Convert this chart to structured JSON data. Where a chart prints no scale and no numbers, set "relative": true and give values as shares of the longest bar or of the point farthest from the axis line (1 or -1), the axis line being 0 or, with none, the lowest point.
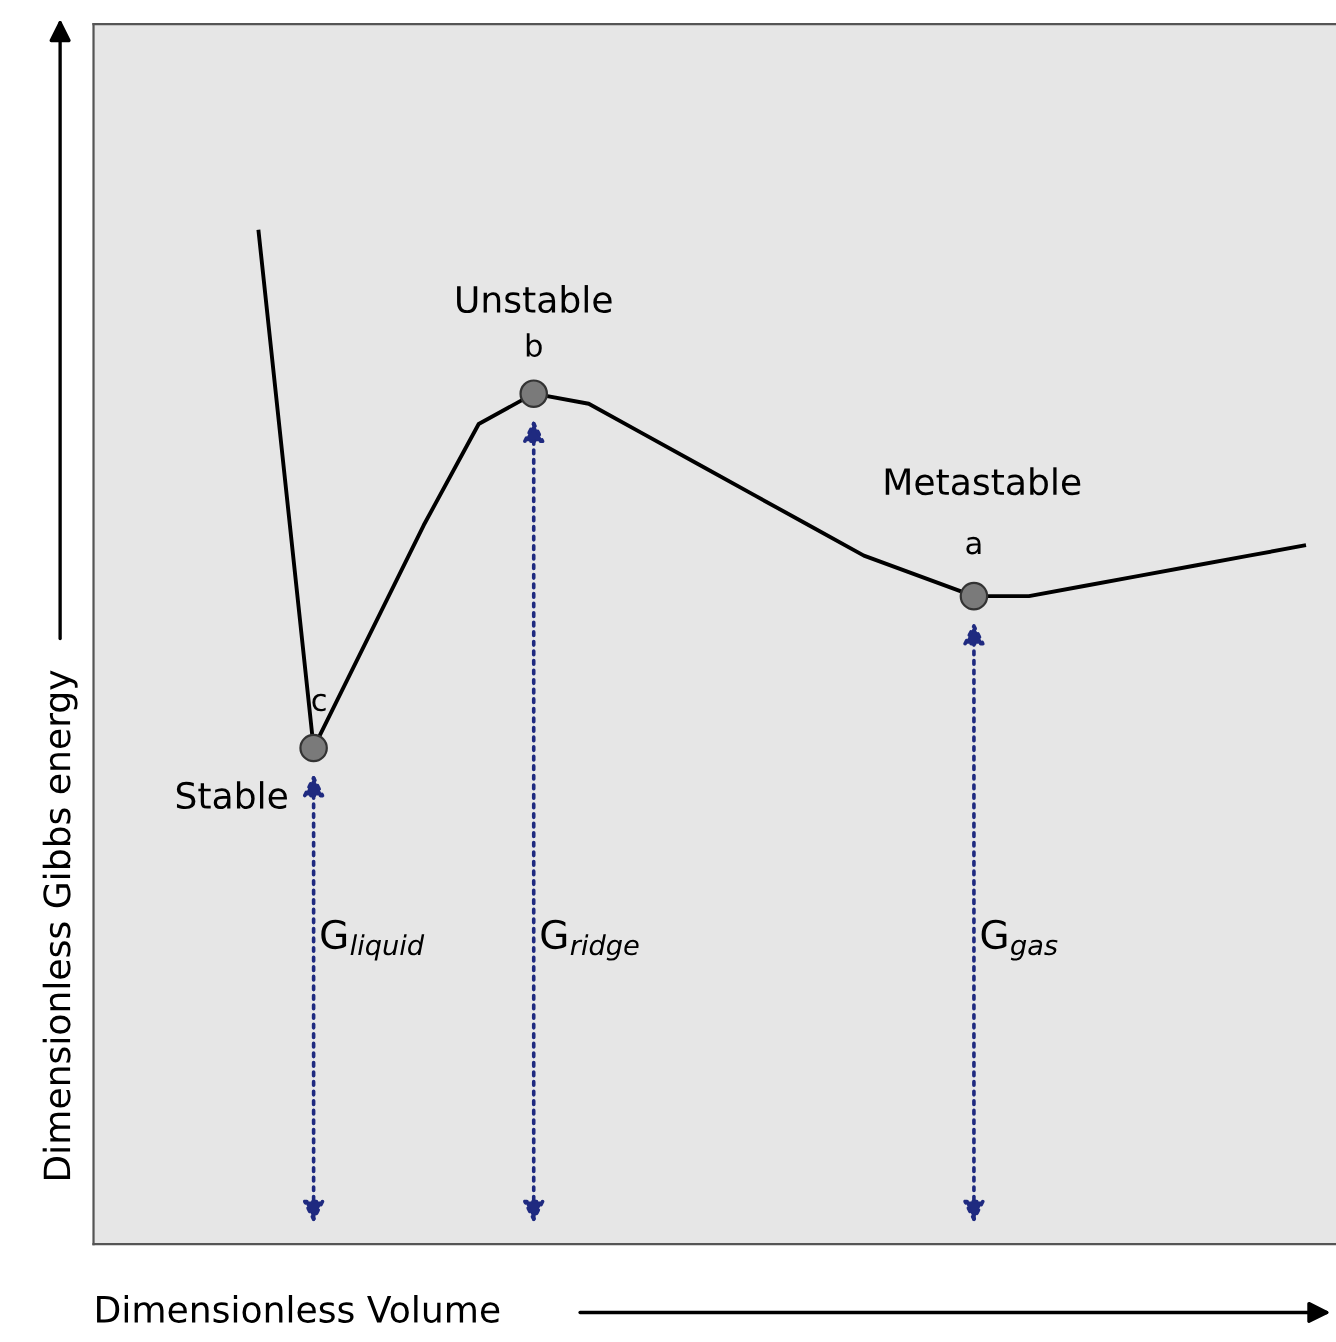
{
  "chart_data": {
    "type": "line",
    "relative": true,
    "xlabel": "Dimensionless Volume",
    "ylabel": "Dimensionless Gibbs energy",
    "categories": [
      null,
      null,
      null,
      null,
      null,
      null,
      null,
      null,
      null,
      null,
      null,
      null,
      null,
      null,
      null,
      null,
      null,
      null,
      null,
      null
    ],
    "series": [
      {
        "color": "#000000",
        "marker": "none",
        "line_style": "solid",
        "values": [
          1.0,
          0.49,
          0.6,
          0.71,
          0.81,
          0.84,
          0.83,
          0.8,
          0.77,
          0.74,
          0.71,
          0.68,
          0.66,
          0.64,
          0.64,
          0.65,
          0.66,
          0.67,
          0.68,
          0.69
        ]
      }
    ],
    "annotations": [
      "Stable",
      "c",
      "Unstable",
      "b",
      "Metastable",
      "a",
      "G$_{liquid}$",
      "G$_{ridge}$",
      "G$_{gas}$"
    ]
  }
}
